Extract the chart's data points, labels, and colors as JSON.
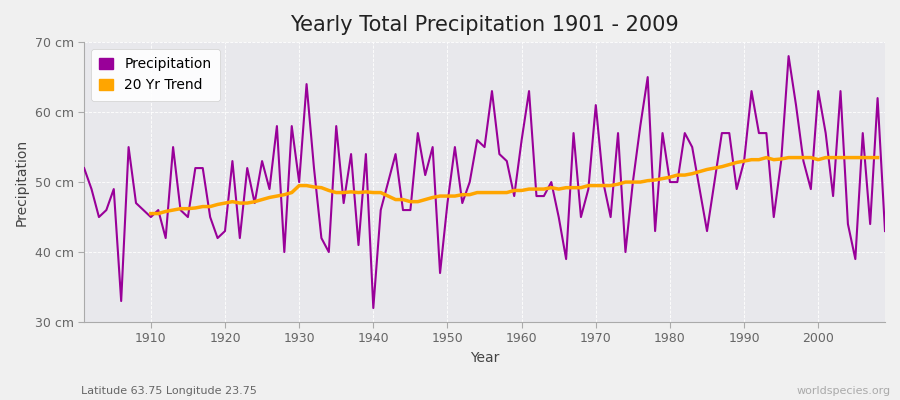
{
  "title": "Yearly Total Precipitation 1901 - 2009",
  "xlabel": "Year",
  "ylabel": "Precipitation",
  "lat_lon_label": "Latitude 63.75 Longitude 23.75",
  "worldspecies_label": "worldspecies.org",
  "ylim": [
    30,
    70
  ],
  "ytick_labels": [
    "30 cm",
    "40 cm",
    "50 cm",
    "60 cm",
    "70 cm"
  ],
  "ytick_values": [
    30,
    40,
    50,
    60,
    70
  ],
  "years": [
    1901,
    1902,
    1903,
    1904,
    1905,
    1906,
    1907,
    1908,
    1909,
    1910,
    1911,
    1912,
    1913,
    1914,
    1915,
    1916,
    1917,
    1918,
    1919,
    1920,
    1921,
    1922,
    1923,
    1924,
    1925,
    1926,
    1927,
    1928,
    1929,
    1930,
    1931,
    1932,
    1933,
    1934,
    1935,
    1936,
    1937,
    1938,
    1939,
    1940,
    1941,
    1942,
    1943,
    1944,
    1945,
    1946,
    1947,
    1948,
    1949,
    1950,
    1951,
    1952,
    1953,
    1954,
    1955,
    1956,
    1957,
    1958,
    1959,
    1960,
    1961,
    1962,
    1963,
    1964,
    1965,
    1966,
    1967,
    1968,
    1969,
    1970,
    1971,
    1972,
    1973,
    1974,
    1975,
    1976,
    1977,
    1978,
    1979,
    1980,
    1981,
    1982,
    1983,
    1984,
    1985,
    1986,
    1987,
    1988,
    1989,
    1990,
    1991,
    1992,
    1993,
    1994,
    1995,
    1996,
    1997,
    1998,
    1999,
    2000,
    2001,
    2002,
    2003,
    2004,
    2005,
    2006,
    2007,
    2008,
    2009
  ],
  "precipitation": [
    52,
    49,
    45,
    46,
    49,
    33,
    55,
    47,
    46,
    45,
    46,
    42,
    55,
    46,
    45,
    52,
    52,
    45,
    42,
    43,
    53,
    42,
    52,
    47,
    53,
    49,
    58,
    40,
    58,
    50,
    64,
    52,
    42,
    40,
    58,
    47,
    54,
    41,
    54,
    32,
    46,
    50,
    54,
    46,
    46,
    57,
    51,
    55,
    37,
    47,
    55,
    47,
    50,
    56,
    55,
    63,
    54,
    53,
    48,
    56,
    63,
    48,
    48,
    50,
    45,
    39,
    57,
    45,
    49,
    61,
    50,
    45,
    57,
    40,
    50,
    58,
    65,
    43,
    57,
    50,
    50,
    57,
    55,
    49,
    43,
    50,
    57,
    57,
    49,
    53,
    63,
    57,
    57,
    45,
    53,
    68,
    61,
    53,
    49,
    63,
    57,
    48,
    63,
    44,
    39,
    57,
    44,
    62,
    43
  ],
  "trend": [
    null,
    null,
    null,
    null,
    null,
    null,
    null,
    null,
    null,
    45.5,
    45.5,
    45.8,
    46.0,
    46.2,
    46.2,
    46.3,
    46.5,
    46.5,
    46.8,
    47.0,
    47.2,
    47.0,
    47.0,
    47.2,
    47.5,
    47.8,
    48.0,
    48.2,
    48.5,
    49.5,
    49.5,
    49.3,
    49.2,
    48.8,
    48.5,
    48.5,
    48.6,
    48.5,
    48.6,
    48.5,
    48.5,
    48.0,
    47.5,
    47.5,
    47.2,
    47.2,
    47.5,
    47.8,
    48.0,
    48.0,
    48.0,
    48.2,
    48.2,
    48.5,
    48.5,
    48.5,
    48.5,
    48.5,
    48.8,
    48.8,
    49.0,
    49.0,
    49.0,
    49.2,
    49.0,
    49.2,
    49.2,
    49.2,
    49.5,
    49.5,
    49.5,
    49.5,
    49.7,
    50.0,
    50.0,
    50.0,
    50.2,
    50.3,
    50.5,
    50.7,
    51.0,
    51.0,
    51.2,
    51.5,
    51.8,
    52.0,
    52.2,
    52.5,
    52.8,
    53.0,
    53.2,
    53.2,
    53.5,
    53.2,
    53.3,
    53.5,
    53.5,
    53.5,
    53.5,
    53.2,
    53.5,
    53.5,
    53.5,
    53.5,
    53.5,
    53.5,
    53.5,
    53.5
  ],
  "precip_color": "#990099",
  "trend_color": "#ffa500",
  "fig_bg_color": "#f0f0f0",
  "plot_bg_color": "#e8e8ec",
  "grid_color": "#ffffff",
  "title_fontsize": 15,
  "label_fontsize": 10,
  "tick_fontsize": 9,
  "lat_lon_color": "#666666",
  "worldspecies_color": "#aaaaaa"
}
